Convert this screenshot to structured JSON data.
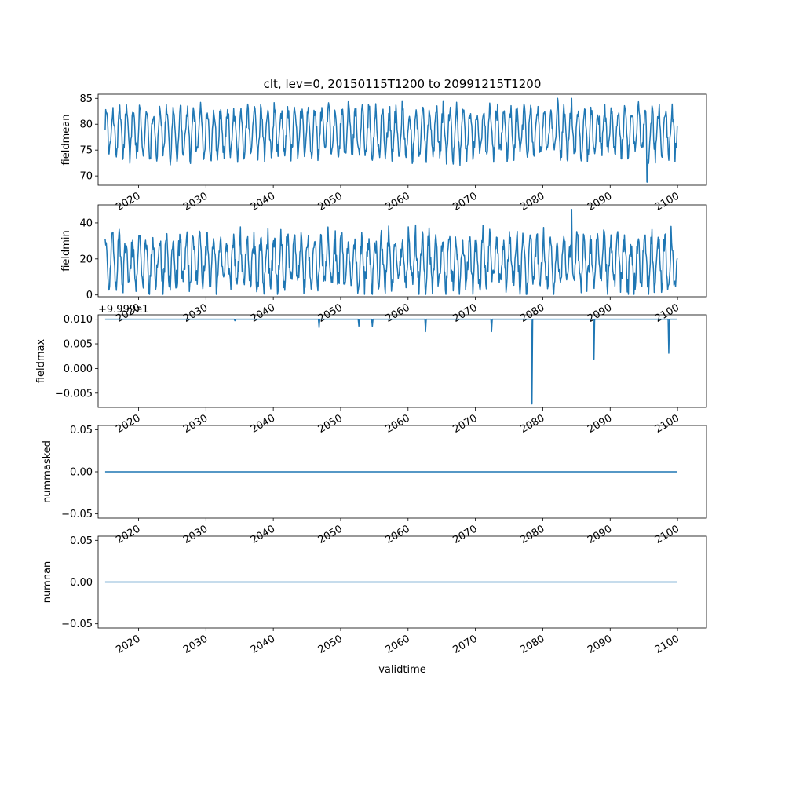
{
  "chart_data": [
    {
      "type": "line",
      "title": "clt, lev=0, 20150115T1200 to 20991215T1200",
      "ylabel": "fieldmean",
      "xlabel": "",
      "color": "#1f77b4",
      "xlim": [
        2014.0,
        2104.3
      ],
      "ylim": [
        68.2,
        85.8
      ],
      "yticks": [
        "70",
        "75",
        "80",
        "85"
      ],
      "ytick_values": [
        70,
        75,
        80,
        85
      ],
      "xticks": [
        "2020",
        "2030",
        "2040",
        "2050",
        "2060",
        "2070",
        "2080",
        "2090",
        "2100"
      ],
      "xtick_values": [
        2020,
        2030,
        2040,
        2050,
        2060,
        2070,
        2080,
        2090,
        2100
      ],
      "x_start": 2015.04,
      "x_end": 2099.96,
      "period_years": 1,
      "series": [
        {
          "mean": 78.5,
          "amplitude": 4.6,
          "min": 68.8,
          "max": 85.0,
          "min_at": 2095.5,
          "max_at": 2084.3
        }
      ]
    },
    {
      "type": "line",
      "title": "",
      "ylabel": "fieldmin",
      "xlabel": "",
      "color": "#1f77b4",
      "xlim": [
        2014.0,
        2104.3
      ],
      "ylim": [
        -1.0,
        50.0
      ],
      "yticks": [
        "0",
        "20",
        "40"
      ],
      "ytick_values": [
        0,
        20,
        40
      ],
      "xticks": [
        "2020",
        "2030",
        "2040",
        "2050",
        "2060",
        "2070",
        "2080",
        "2090",
        "2100"
      ],
      "xtick_values": [
        2020,
        2030,
        2040,
        2050,
        2060,
        2070,
        2080,
        2090,
        2100
      ],
      "x_start": 2015.04,
      "x_end": 2099.96,
      "period_years": 1,
      "series": [
        {
          "mean": 18.0,
          "amplitude": 14.0,
          "min": 0.3,
          "max": 47.5,
          "max_at": 2084.3
        }
      ]
    },
    {
      "type": "line",
      "title": "",
      "ylabel": "fieldmax",
      "xlabel": "",
      "offset_text": "+9.999e1",
      "color": "#1f77b4",
      "xlim": [
        2014.0,
        2104.3
      ],
      "ylim": [
        -0.0079,
        0.0109
      ],
      "yticks": [
        "−0.005",
        "0.000",
        "0.005",
        "0.010"
      ],
      "ytick_values": [
        -0.005,
        0.0,
        0.005,
        0.01
      ],
      "xticks": [
        "2020",
        "2030",
        "2040",
        "2050",
        "2060",
        "2070",
        "2080",
        "2090",
        "2100"
      ],
      "xtick_values": [
        2020,
        2030,
        2040,
        2050,
        2060,
        2070,
        2080,
        2090,
        2100
      ],
      "x": [
        2015.04,
        2034.2,
        2034.3,
        2034.4,
        2046.7,
        2046.8,
        2046.9,
        2052.6,
        2052.7,
        2052.8,
        2054.6,
        2054.7,
        2054.8,
        2062.5,
        2062.6,
        2062.7,
        2072.3,
        2072.4,
        2072.5,
        2078.3,
        2078.4,
        2078.5,
        2087.5,
        2087.6,
        2087.7,
        2098.6,
        2098.7,
        2098.8,
        2099.96
      ],
      "series": [
        {
          "values": [
            0.01,
            0.01,
            0.0097,
            0.01,
            0.01,
            0.0083,
            0.01,
            0.01,
            0.0086,
            0.01,
            0.01,
            0.0085,
            0.01,
            0.01,
            0.0075,
            0.01,
            0.01,
            0.0075,
            0.01,
            0.01,
            -0.0072,
            0.01,
            0.01,
            0.0019,
            0.01,
            0.01,
            0.0031,
            0.01,
            0.01
          ]
        }
      ]
    },
    {
      "type": "line",
      "title": "",
      "ylabel": "nummasked",
      "xlabel": "",
      "color": "#1f77b4",
      "xlim": [
        2014.0,
        2104.3
      ],
      "ylim": [
        -0.055,
        0.055
      ],
      "yticks": [
        "−0.05",
        "0.00",
        "0.05"
      ],
      "ytick_values": [
        -0.05,
        0.0,
        0.05
      ],
      "xticks": [
        "2020",
        "2030",
        "2040",
        "2050",
        "2060",
        "2070",
        "2080",
        "2090",
        "2100"
      ],
      "xtick_values": [
        2020,
        2030,
        2040,
        2050,
        2060,
        2070,
        2080,
        2090,
        2100
      ],
      "x": [
        2015.04,
        2099.96
      ],
      "series": [
        {
          "values": [
            0.0,
            0.0
          ]
        }
      ]
    },
    {
      "type": "line",
      "title": "",
      "ylabel": "numnan",
      "xlabel": "validtime",
      "color": "#1f77b4",
      "xlim": [
        2014.0,
        2104.3
      ],
      "ylim": [
        -0.055,
        0.055
      ],
      "yticks": [
        "−0.05",
        "0.00",
        "0.05"
      ],
      "ytick_values": [
        -0.05,
        0.0,
        0.05
      ],
      "xticks": [
        "2020",
        "2030",
        "2040",
        "2050",
        "2060",
        "2070",
        "2080",
        "2090",
        "2100"
      ],
      "xtick_values": [
        2020,
        2030,
        2040,
        2050,
        2060,
        2070,
        2080,
        2090,
        2100
      ],
      "x": [
        2015.04,
        2099.96
      ],
      "series": [
        {
          "values": [
            0.0,
            0.0
          ]
        }
      ]
    }
  ]
}
